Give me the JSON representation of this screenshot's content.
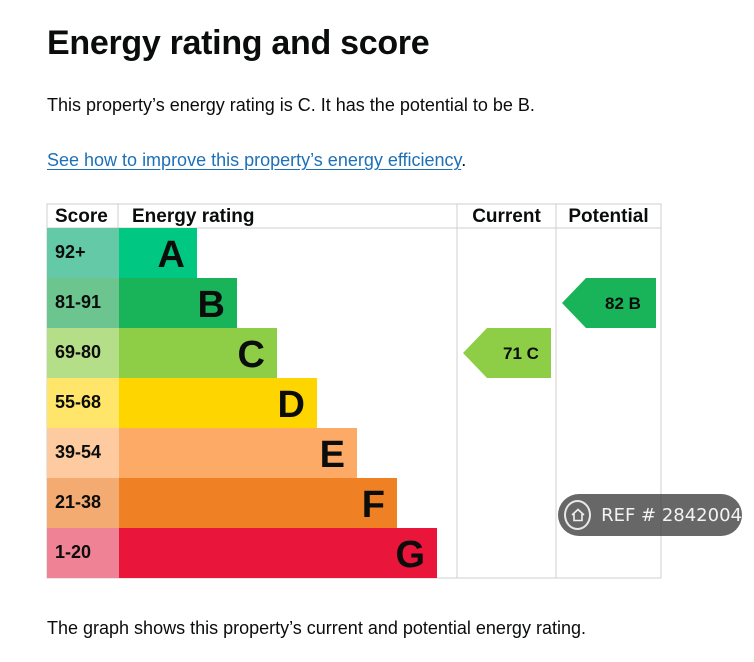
{
  "page": {
    "title": "Energy rating and score",
    "summary": "This property’s energy rating is C. It has the potential to be B.",
    "link_text": "See how to improve this property’s energy efficiency",
    "link_suffix": ".",
    "caption": "The graph shows this property’s current and potential energy rating."
  },
  "chart_data": {
    "type": "table",
    "title": "",
    "columns": [
      "Score",
      "Energy rating",
      "Current",
      "Potential"
    ],
    "bands": [
      {
        "score": "92+",
        "letter": "A",
        "color": "#00c781",
        "score_bg": "#64c9a6"
      },
      {
        "score": "81-91",
        "letter": "B",
        "color": "#19b459",
        "score_bg": "#6cc58e"
      },
      {
        "score": "69-80",
        "letter": "C",
        "color": "#8dce46",
        "score_bg": "#b5de88"
      },
      {
        "score": "55-68",
        "letter": "D",
        "color": "#ffd500",
        "score_bg": "#ffe66a"
      },
      {
        "score": "39-54",
        "letter": "E",
        "color": "#fcaa65",
        "score_bg": "#fdcb9f"
      },
      {
        "score": "21-38",
        "letter": "F",
        "color": "#ef8023",
        "score_bg": "#f4ab72"
      },
      {
        "score": "1-20",
        "letter": "G",
        "color": "#e9153b",
        "score_bg": "#f08295"
      }
    ],
    "current": {
      "score": 71,
      "band": "C",
      "label": "71 C",
      "color": "#8dce46"
    },
    "potential": {
      "score": 82,
      "band": "B",
      "label": "82 B",
      "color": "#19b459"
    }
  },
  "watermark": {
    "text": "REF # 2842004",
    "icon": "home-icon"
  }
}
